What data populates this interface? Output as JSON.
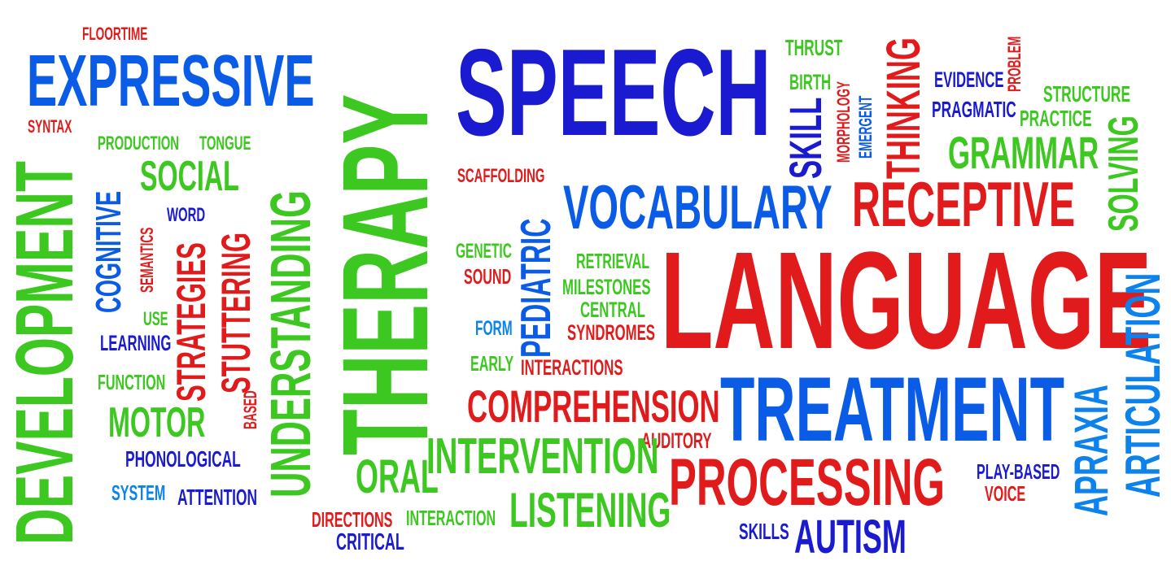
{
  "palette": {
    "green": "#3cc820",
    "blue": "#0a5ce6",
    "dark_blue": "#1a1ad0",
    "red": "#e11b1b",
    "light_blue": "#0c83ec"
  },
  "words": {
    "floortime": "FLOORTIME",
    "expressive": "EXPRESSIVE",
    "syntax": "SYNTAX",
    "development": "DEVELOPMENT",
    "production": "PRODUCTION",
    "tongue": "TONGUE",
    "social": "SOCIAL",
    "cognitive": "COGNITIVE",
    "semantics": "SEMANTICS",
    "word": "WORD",
    "strategies": "STRATEGIES",
    "stuttering": "STUTTERING",
    "use": "USE",
    "learning": "LEARNING",
    "function": "FUNCTION",
    "based": "BASED",
    "motor": "MOTOR",
    "phonological": "PHONOLOGICAL",
    "system": "SYSTEM",
    "attention": "ATTENTION",
    "understanding": "UNDERSTANDING",
    "therapy": "THERAPY",
    "speech": "SPEECH",
    "scaffolding": "SCAFFOLDING",
    "genetic": "GENETIC",
    "sound": "SOUND",
    "pediatric": "PEDIATRIC",
    "form": "FORM",
    "early": "EARLY",
    "interactions": "INTERACTIONS",
    "comprehension": "COMPREHENSION",
    "intervention": "INTERVENTION",
    "auditory": "AUDITORY",
    "oral": "ORAL",
    "directions": "DIRECTIONS",
    "critical": "CRITICAL",
    "interaction": "INTERACTION",
    "listening": "LISTENING",
    "thrust": "THRUST",
    "birth": "BIRTH",
    "morphology": "MORPHOLOGY",
    "emergent": "EMERGENT",
    "thinking": "THINKING",
    "skill": "SKILL",
    "evidence": "EVIDENCE",
    "problem": "PROBLEM",
    "structure": "STRUCTURE",
    "pragmatic": "PRAGMATIC",
    "practice": "PRACTICE",
    "grammar": "GRAMMAR",
    "solving": "SOLVING",
    "vocabulary": "VOCABULARY",
    "receptive": "RECEPTIVE",
    "retrieval": "RETRIEVAL",
    "milestones": "MILESTONES",
    "central": "CENTRAL",
    "syndromes": "SYNDROMES",
    "language": "LANGUAGE",
    "treatment": "TREATMENT",
    "processing": "PROCESSING",
    "skills": "SKILLS",
    "autism": "AUTISM",
    "play_based": "PLAY-BASED",
    "voice": "VOICE",
    "apraxia": "APRAXIA",
    "articulation": "ARTICULATION"
  }
}
